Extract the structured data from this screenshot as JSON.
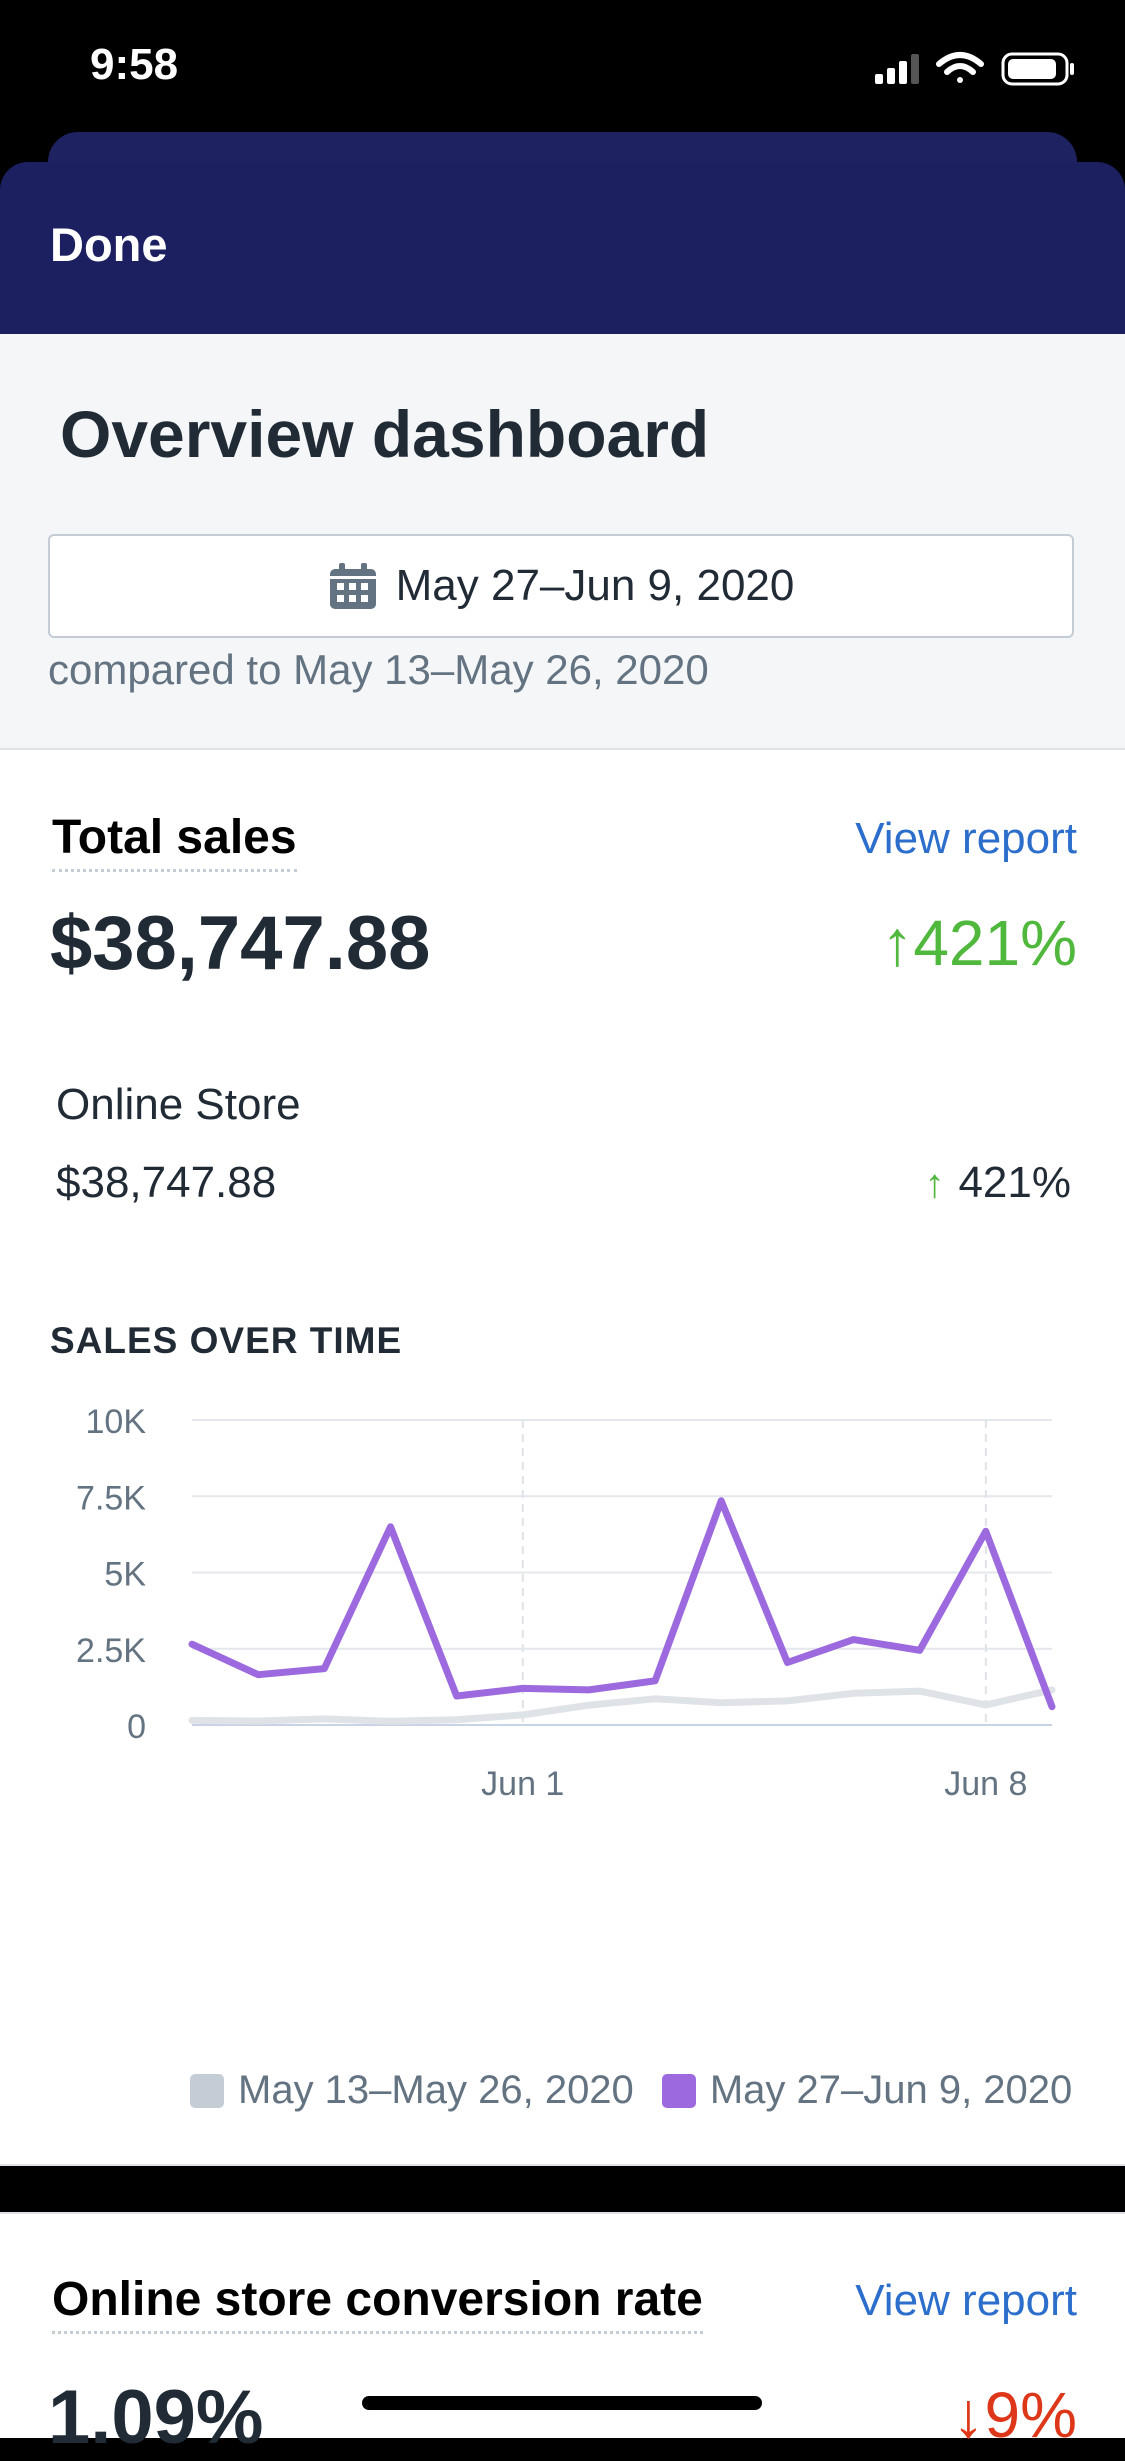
{
  "status_bar": {
    "time": "9:58"
  },
  "nav": {
    "done_label": "Done"
  },
  "header": {
    "title": "Overview dashboard",
    "date_range": "May 27–Jun 9, 2020",
    "compared": "compared to May 13–May 26, 2020"
  },
  "total_sales": {
    "title": "Total sales",
    "view_report": "View report",
    "value": "$38,747.88",
    "change": "421%",
    "channel_label": "Online Store",
    "channel_value": "$38,747.88",
    "channel_change": "421%"
  },
  "sales_over_time": {
    "title": "SALES OVER TIME",
    "legend_prev": "May 13–May 26, 2020",
    "legend_curr": "May 27–Jun 9, 2020"
  },
  "conversion": {
    "title": "Online store conversion rate",
    "view_report": "View report",
    "value": "1.09%",
    "change": "9%"
  },
  "colors": {
    "navbar": "#1c2061",
    "current": "#9c6ade",
    "previous": "#dfe3e8",
    "up": "#50b83c",
    "down": "#de3618",
    "link": "#2c6ecb"
  },
  "chart_data": {
    "type": "line",
    "title": "SALES OVER TIME",
    "y_ticks": [
      "10K",
      "7.5K",
      "5K",
      "2.5K",
      "0"
    ],
    "x_ticks": [
      {
        "index": 5,
        "label": "Jun 1"
      },
      {
        "index": 12,
        "label": "Jun 8"
      }
    ],
    "ylim": [
      0,
      10000
    ],
    "grid": true,
    "legend": "bottom",
    "series": [
      {
        "name": "May 13–May 26, 2020",
        "color": "#dfe3e8",
        "values": [
          150,
          130,
          200,
          120,
          170,
          330,
          650,
          860,
          730,
          790,
          1040,
          1110,
          660,
          1150
        ]
      },
      {
        "name": "May 27–Jun 9, 2020",
        "color": "#9c6ade",
        "values": [
          2650,
          1650,
          1850,
          6500,
          950,
          1200,
          1150,
          1450,
          7350,
          2050,
          2800,
          2450,
          6350,
          600
        ]
      }
    ]
  }
}
